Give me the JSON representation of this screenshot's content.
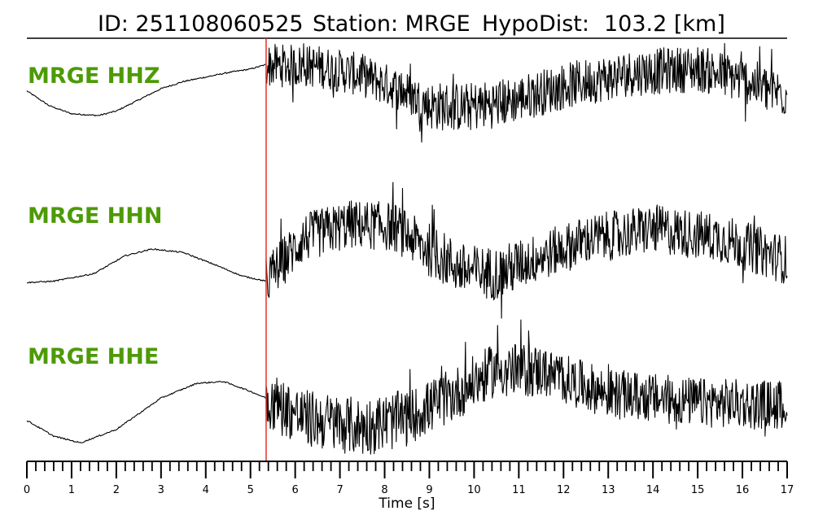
{
  "header": {
    "id_label": "ID: 251108060525",
    "station_label": "Station: MRGE",
    "dist_label": "HypoDist:",
    "dist_value": "103.2 [km]"
  },
  "xlabel": "Time [s]",
  "colors": {
    "label": "#4d9a06",
    "pick": "#e8302a",
    "trace": "#000000"
  },
  "chart_data": {
    "type": "line",
    "title": "ID: 251108060525   Station: MRGE   HypoDist:   103.2 [km]",
    "xlabel": "Time [s]",
    "ylabel": "",
    "xlim": [
      0,
      17
    ],
    "x_ticks": [
      0,
      1,
      2,
      3,
      4,
      5,
      6,
      7,
      8,
      9,
      10,
      11,
      12,
      13,
      14,
      15,
      16,
      17
    ],
    "minor_tick_step": 0.2,
    "pick_time": 5.35,
    "grid": false,
    "series": [
      {
        "name": "MRGE HHZ",
        "points": [
          [
            0,
            0.15
          ],
          [
            0.5,
            -0.18
          ],
          [
            1,
            -0.36
          ],
          [
            1.6,
            -0.4
          ],
          [
            2,
            -0.3
          ],
          [
            2.5,
            -0.05
          ],
          [
            3,
            0.2
          ],
          [
            3.5,
            0.36
          ],
          [
            4,
            0.46
          ],
          [
            4.5,
            0.56
          ],
          [
            5,
            0.64
          ],
          [
            5.35,
            0.74
          ]
        ],
        "noise_segments": [
          {
            "x0": 5.35,
            "x1": 9.0,
            "trend": [
              [
                5.35,
                0.72
              ],
              [
                6.5,
                0.7
              ],
              [
                7.5,
                0.5
              ],
              [
                8.5,
                0.1
              ],
              [
                9.0,
                -0.18
              ]
            ],
            "amp": 0.48
          },
          {
            "x0": 9.0,
            "x1": 10.7,
            "trend": [
              [
                9.0,
                -0.18
              ],
              [
                9.8,
                -0.22
              ],
              [
                10.7,
                -0.1
              ]
            ],
            "amp": 0.55
          },
          {
            "x0": 10.7,
            "x1": 17.0,
            "trend": [
              [
                10.7,
                -0.1
              ],
              [
                12,
                0.25
              ],
              [
                13.5,
                0.55
              ],
              [
                15,
                0.65
              ],
              [
                16,
                0.4
              ],
              [
                17,
                0.05
              ]
            ],
            "amp": 0.52
          }
        ]
      },
      {
        "name": "MRGE HHN",
        "points": [
          [
            0,
            -0.95
          ],
          [
            0.6,
            -0.92
          ],
          [
            1.5,
            -0.75
          ],
          [
            2.2,
            -0.35
          ],
          [
            2.8,
            -0.2
          ],
          [
            3.5,
            -0.28
          ],
          [
            4.2,
            -0.55
          ],
          [
            4.8,
            -0.8
          ],
          [
            5.35,
            -0.92
          ]
        ],
        "noise_segments": [
          {
            "x0": 5.35,
            "x1": 8.8,
            "trend": [
              [
                5.35,
                -0.9
              ],
              [
                6.2,
                0.05
              ],
              [
                7.2,
                0.35
              ],
              [
                8.2,
                0.3
              ],
              [
                8.8,
                -0.1
              ]
            ],
            "amp": 0.55
          },
          {
            "x0": 8.8,
            "x1": 11.0,
            "trend": [
              [
                8.8,
                -0.1
              ],
              [
                9.8,
                -0.7
              ],
              [
                10.6,
                -0.75
              ],
              [
                11.0,
                -0.55
              ]
            ],
            "amp": 0.6
          },
          {
            "x0": 11.0,
            "x1": 17.0,
            "trend": [
              [
                11.0,
                -0.55
              ],
              [
                12.5,
                0.0
              ],
              [
                14.0,
                0.25
              ],
              [
                15.5,
                0.05
              ],
              [
                17,
                -0.45
              ]
            ],
            "amp": 0.55
          }
        ]
      },
      {
        "name": "MRGE HHE",
        "points": [
          [
            0,
            -0.85
          ],
          [
            0.6,
            -1.2
          ],
          [
            1.2,
            -1.35
          ],
          [
            2,
            -1.05
          ],
          [
            3,
            -0.35
          ],
          [
            3.8,
            -0.02
          ],
          [
            4.4,
            0.02
          ],
          [
            5,
            -0.2
          ],
          [
            5.35,
            -0.35
          ]
        ],
        "noise_segments": [
          {
            "x0": 5.35,
            "x1": 8.5,
            "trend": [
              [
                5.35,
                -0.35
              ],
              [
                6.2,
                -0.8
              ],
              [
                7.5,
                -1.0
              ],
              [
                8.5,
                -0.8
              ]
            ],
            "amp": 0.65
          },
          {
            "x0": 8.5,
            "x1": 11.5,
            "trend": [
              [
                8.5,
                -0.8
              ],
              [
                9.5,
                -0.3
              ],
              [
                10.5,
                0.3
              ],
              [
                11.5,
                0.25
              ]
            ],
            "amp": 0.6
          },
          {
            "x0": 11.5,
            "x1": 17.0,
            "trend": [
              [
                11.5,
                0.25
              ],
              [
                13,
                -0.25
              ],
              [
                15,
                -0.45
              ],
              [
                17,
                -0.5
              ]
            ],
            "amp": 0.55
          }
        ]
      }
    ]
  }
}
